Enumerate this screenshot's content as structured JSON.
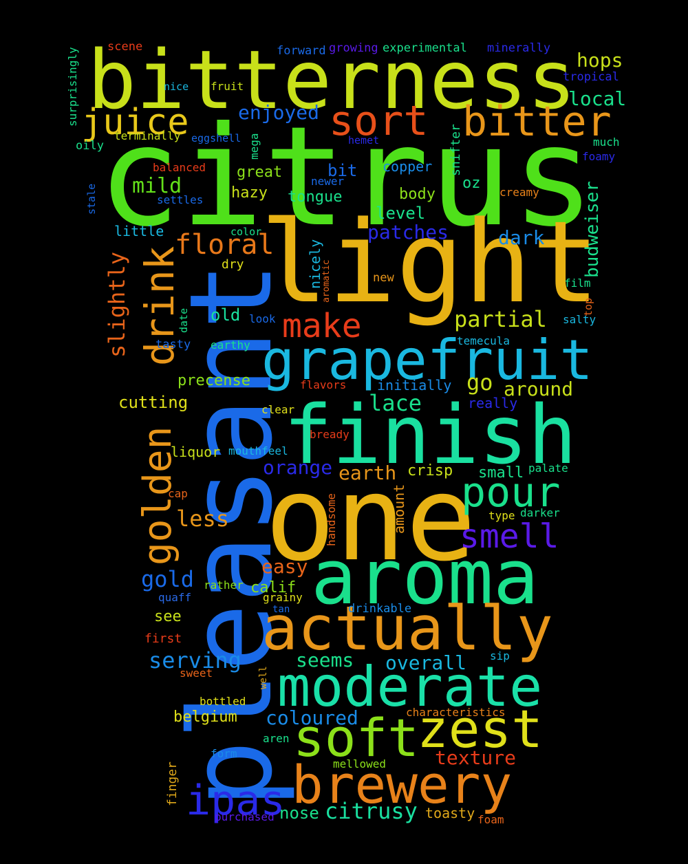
{
  "background": "#000000",
  "words": [
    {
      "text": "citrus",
      "color": "#4fe01a"
    },
    {
      "text": "pleasant",
      "color": "#1a6ae8"
    },
    {
      "text": "light",
      "color": "#e8b214"
    },
    {
      "text": "one",
      "color": "#e8b214"
    },
    {
      "text": "bitterness",
      "color": "#c8e01a"
    },
    {
      "text": "finish",
      "color": "#1ae0a0"
    },
    {
      "text": "aroma",
      "color": "#1ae08c"
    },
    {
      "text": "grapefruit",
      "color": "#1ab8e0"
    },
    {
      "text": "actually",
      "color": "#e8961a"
    },
    {
      "text": "moderate",
      "color": "#1ae0a8"
    },
    {
      "text": "brewery",
      "color": "#e8821a"
    },
    {
      "text": "soft",
      "color": "#8ce01a"
    },
    {
      "text": "zest",
      "color": "#e0e01a"
    },
    {
      "text": "drink",
      "color": "#e8961a"
    },
    {
      "text": "golden",
      "color": "#e8961a"
    },
    {
      "text": "bitter",
      "color": "#e8961a"
    },
    {
      "text": "sort",
      "color": "#e8501a"
    },
    {
      "text": "juice",
      "color": "#e8c81a"
    },
    {
      "text": "pour",
      "color": "#1ae08c"
    },
    {
      "text": "ipas",
      "color": "#2a2ae8"
    },
    {
      "text": "smell",
      "color": "#5a1ae8"
    },
    {
      "text": "make",
      "color": "#e83c1a"
    },
    {
      "text": "floral",
      "color": "#e8781a"
    },
    {
      "text": "partial",
      "color": "#c8e01a"
    },
    {
      "text": "citrusy",
      "color": "#1ae0a0"
    },
    {
      "text": "slightly",
      "color": "#e8641a"
    },
    {
      "text": "hops",
      "color": "#c8e01a"
    },
    {
      "text": "local",
      "color": "#1ae08c"
    },
    {
      "text": "enjoyed",
      "color": "#1a6ae8"
    },
    {
      "text": "mild",
      "color": "#64e01a"
    },
    {
      "text": "dark",
      "color": "#1a8ce8"
    },
    {
      "text": "patches",
      "color": "#2a2ae8"
    },
    {
      "text": "budweiser",
      "color": "#1ae08c"
    },
    {
      "text": "serving",
      "color": "#1a8ce8"
    },
    {
      "text": "overall",
      "color": "#1ab8e0"
    },
    {
      "text": "coloured",
      "color": "#1a8ce8"
    },
    {
      "text": "texture",
      "color": "#e83c1a"
    },
    {
      "text": "less",
      "color": "#e8961a"
    },
    {
      "text": "gold",
      "color": "#1a6ae8"
    },
    {
      "text": "lace",
      "color": "#1ae08c"
    },
    {
      "text": "around",
      "color": "#c8e01a"
    },
    {
      "text": "orange",
      "color": "#2a2ae8"
    },
    {
      "text": "earth",
      "color": "#e8961a"
    },
    {
      "text": "easy",
      "color": "#e8641a"
    },
    {
      "text": "seems",
      "color": "#1ae08c"
    },
    {
      "text": "go",
      "color": "#c8e01a"
    },
    {
      "text": "nose",
      "color": "#1ae08c"
    },
    {
      "text": "cutting",
      "color": "#e0e01a"
    },
    {
      "text": "precense",
      "color": "#8ce01a"
    },
    {
      "text": "old",
      "color": "#1ae0a0"
    },
    {
      "text": "hazy",
      "color": "#c8e01a"
    },
    {
      "text": "great",
      "color": "#8ce01a"
    },
    {
      "text": "bit",
      "color": "#1a6ae8"
    },
    {
      "text": "copper",
      "color": "#1a8ce8"
    },
    {
      "text": "body",
      "color": "#8ce01a"
    },
    {
      "text": "level",
      "color": "#1ae08c"
    },
    {
      "text": "tongue",
      "color": "#1ae08c"
    },
    {
      "text": "oz",
      "color": "#1ae08c"
    },
    {
      "text": "little",
      "color": "#1ab8e0"
    },
    {
      "text": "crisp",
      "color": "#c8e01a"
    },
    {
      "text": "small",
      "color": "#1ae08c"
    },
    {
      "text": "amount",
      "color": "#e8961a"
    },
    {
      "text": "calif",
      "color": "#8ce01a"
    },
    {
      "text": "see",
      "color": "#c8e01a"
    },
    {
      "text": "belgium",
      "color": "#e0e01a"
    },
    {
      "text": "toasty",
      "color": "#e0a81a"
    },
    {
      "text": "nicely",
      "color": "#1ab8e0"
    },
    {
      "text": "liquor",
      "color": "#c8e01a"
    },
    {
      "text": "mouthfeel",
      "color": "#1ab8e0"
    },
    {
      "text": "initially",
      "color": "#1a8ce8"
    },
    {
      "text": "really",
      "color": "#2a2ae8"
    },
    {
      "text": "mega",
      "color": "#1ae08c"
    },
    {
      "text": "snifter",
      "color": "#1ae08c"
    },
    {
      "text": "dry",
      "color": "#e0e01a"
    },
    {
      "text": "earthy",
      "color": "#1ae08c"
    },
    {
      "text": "temecula",
      "color": "#1ab8e0"
    },
    {
      "text": "handsome",
      "color": "#e8641a"
    },
    {
      "text": "finger",
      "color": "#e0a81a"
    },
    {
      "text": "purchased",
      "color": "#5a1ae8"
    },
    {
      "text": "foam",
      "color": "#e8641a"
    },
    {
      "text": "mellowed",
      "color": "#8ce01a"
    },
    {
      "text": "form",
      "color": "#1a8ce8"
    },
    {
      "text": "aren",
      "color": "#1ae08c"
    },
    {
      "text": "characteristics",
      "color": "#e8821a"
    },
    {
      "text": "bottled",
      "color": "#e0e01a"
    },
    {
      "text": "sweet",
      "color": "#e8641a"
    },
    {
      "text": "well",
      "color": "#e0a81a"
    },
    {
      "text": "sip",
      "color": "#1ab8e0"
    },
    {
      "text": "first",
      "color": "#e83c1a"
    },
    {
      "text": "quaff",
      "color": "#2a6ae8"
    },
    {
      "text": "rather",
      "color": "#8ce01a"
    },
    {
      "text": "grainy",
      "color": "#e0e01a"
    },
    {
      "text": "tan",
      "color": "#1a6ae8"
    },
    {
      "text": "drinkable",
      "color": "#1a8ce8"
    },
    {
      "text": "type",
      "color": "#e0e01a"
    },
    {
      "text": "darker",
      "color": "#1ae08c"
    },
    {
      "text": "palate",
      "color": "#1ae08c"
    },
    {
      "text": "cap",
      "color": "#e8641a"
    },
    {
      "text": "bready",
      "color": "#e83c1a"
    },
    {
      "text": "clear",
      "color": "#e0e01a"
    },
    {
      "text": "flavors",
      "color": "#e83c1a"
    },
    {
      "text": "tasty",
      "color": "#1a6ae8"
    },
    {
      "text": "look",
      "color": "#1a6ae8"
    },
    {
      "text": "date",
      "color": "#1ae08c"
    },
    {
      "text": "aromatic",
      "color": "#e8641a"
    },
    {
      "text": "new",
      "color": "#e8961a"
    },
    {
      "text": "color",
      "color": "#1ae08c"
    },
    {
      "text": "film",
      "color": "#1ae08c"
    },
    {
      "text": "top",
      "color": "#e8641a"
    },
    {
      "text": "salty",
      "color": "#1ab8e0"
    },
    {
      "text": "creamy",
      "color": "#e8821a"
    },
    {
      "text": "settles",
      "color": "#1a6ae8"
    },
    {
      "text": "newer",
      "color": "#1a6ae8"
    },
    {
      "text": "balanced",
      "color": "#e83c1a"
    },
    {
      "text": "stale",
      "color": "#1a6ae8"
    },
    {
      "text": "oily",
      "color": "#1ae08c"
    },
    {
      "text": "terminally",
      "color": "#c8e01a"
    },
    {
      "text": "eggshell",
      "color": "#1a6ae8"
    },
    {
      "text": "hemet",
      "color": "#2a2ae8"
    },
    {
      "text": "much",
      "color": "#1ae08c"
    },
    {
      "text": "foamy",
      "color": "#2a2ae8"
    },
    {
      "text": "tropical",
      "color": "#2a2ae8"
    },
    {
      "text": "minerally",
      "color": "#2a2ae8"
    },
    {
      "text": "experimental",
      "color": "#1ae08c"
    },
    {
      "text": "growing",
      "color": "#5a1ae8"
    },
    {
      "text": "forward",
      "color": "#1a6ae8"
    },
    {
      "text": "scene",
      "color": "#e83c1a"
    },
    {
      "text": "nice",
      "color": "#1ab8e0"
    },
    {
      "text": "fruit",
      "color": "#c8e01a"
    },
    {
      "text": "surprisingly",
      "color": "#1ae08c"
    }
  ]
}
